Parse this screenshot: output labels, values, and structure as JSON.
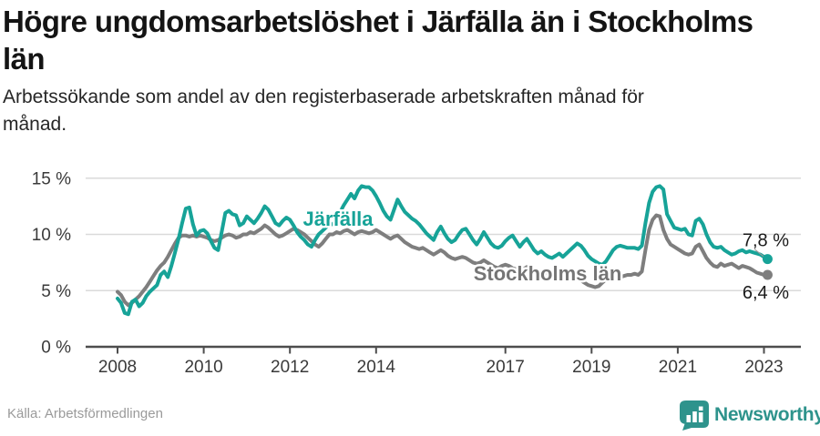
{
  "title": "Högre ungdomsarbetslöshet i Järfälla än i Stockholms län",
  "title_lines": [
    "Högre ungdomsarbetslöshet i Järfälla än i Stockholms",
    "län"
  ],
  "subtitle": "Arbetssökande som andel av den registerbaserade arbetskraften månad för månad.",
  "subtitle_lines": [
    "Arbetssökande som andel av den registerbaserade arbetskraften månad för",
    "månad."
  ],
  "source": "Källa: Arbetsförmedlingen",
  "branding": {
    "wordmark": "Newsworthy",
    "logo_icon": "bar-chart-bubble-icon",
    "color": "#2E938C"
  },
  "chart_data": {
    "type": "line",
    "frequency": "monthly",
    "x_start": "2008-01",
    "x_end": "2023-02",
    "x_ticks": [
      2008,
      2010,
      2012,
      2014,
      2017,
      2019,
      2021,
      2023
    ],
    "y_ticks_percent": [
      0,
      5,
      10,
      15
    ],
    "y_tick_labels": [
      "0 %",
      "5 %",
      "10 %",
      "15 %"
    ],
    "ylim": [
      0,
      16
    ],
    "grid": "horizontal",
    "colors": {
      "axis": "#4D4D4D",
      "gridline": "#DADADA",
      "tick_text": "#3A3A3A",
      "end_label_text": "#1A1A1A"
    },
    "series": [
      {
        "name": "Järfälla",
        "id": "jarfalla",
        "color": "#17A398",
        "end_label": "7,8 %",
        "end_value": 7.8,
        "values": [
          4.3,
          3.9,
          3.0,
          2.9,
          4.0,
          4.2,
          3.6,
          3.9,
          4.5,
          4.9,
          5.2,
          5.5,
          6.4,
          6.7,
          6.2,
          7.2,
          8.4,
          9.6,
          11.0,
          12.3,
          12.4,
          10.9,
          9.9,
          10.3,
          10.4,
          10.1,
          9.4,
          8.8,
          8.6,
          10.2,
          11.9,
          12.1,
          11.8,
          11.7,
          10.8,
          11.0,
          11.6,
          11.3,
          11.0,
          11.4,
          11.9,
          12.5,
          12.2,
          11.6,
          11.0,
          10.8,
          11.2,
          11.5,
          11.3,
          10.8,
          10.2,
          9.8,
          9.5,
          9.1,
          8.9,
          9.5,
          10.0,
          10.3,
          10.6,
          10.9,
          10.9,
          11.4,
          12.0,
          12.6,
          13.1,
          13.6,
          13.2,
          13.9,
          14.3,
          14.2,
          14.2,
          13.9,
          13.4,
          12.8,
          12.1,
          11.6,
          11.3,
          12.2,
          13.1,
          12.5,
          12.0,
          11.7,
          11.4,
          11.2,
          10.9,
          10.5,
          10.1,
          9.8,
          9.5,
          10.2,
          10.7,
          10.1,
          9.6,
          9.3,
          9.5,
          10.0,
          10.4,
          10.5,
          10.0,
          9.5,
          9.1,
          9.6,
          10.2,
          9.7,
          9.2,
          8.9,
          8.8,
          9.0,
          9.4,
          9.7,
          9.9,
          9.4,
          8.9,
          9.3,
          9.6,
          9.1,
          8.6,
          8.3,
          8.5,
          8.2,
          8.0,
          7.9,
          8.1,
          8.3,
          8.0,
          8.3,
          8.6,
          8.9,
          9.2,
          9.0,
          8.6,
          8.1,
          7.8,
          7.6,
          7.4,
          7.3,
          7.6,
          8.1,
          8.6,
          8.9,
          9.0,
          8.9,
          8.8,
          8.8,
          8.8,
          8.7,
          9.0,
          11.0,
          12.8,
          13.8,
          14.2,
          14.3,
          14.0,
          11.8,
          11.2,
          10.6,
          10.5,
          10.4,
          10.5,
          10.0,
          9.9,
          11.2,
          11.4,
          10.9,
          10.0,
          9.3,
          8.9,
          8.8,
          8.9,
          8.6,
          8.4,
          8.2,
          8.3,
          8.5,
          8.6,
          8.4,
          8.5,
          8.4,
          8.3,
          8.2,
          8.0,
          7.8
        ]
      },
      {
        "name": "Stockholms län",
        "id": "stockholms-lan",
        "color": "#7E7E7E",
        "label_color": "#757575",
        "end_label": "6,4 %",
        "end_value": 6.4,
        "values": [
          4.9,
          4.6,
          4.0,
          3.7,
          3.9,
          4.2,
          4.5,
          4.9,
          5.3,
          5.8,
          6.3,
          6.8,
          7.2,
          7.5,
          8.0,
          8.6,
          9.2,
          9.7,
          9.9,
          9.9,
          9.8,
          9.9,
          9.8,
          9.9,
          9.8,
          9.7,
          9.5,
          9.4,
          9.5,
          9.7,
          9.9,
          10.0,
          9.9,
          9.7,
          9.8,
          10.0,
          10.0,
          10.2,
          10.1,
          10.3,
          10.5,
          10.8,
          10.6,
          10.3,
          10.0,
          9.8,
          9.9,
          10.1,
          10.3,
          10.5,
          10.4,
          10.2,
          10.0,
          9.7,
          9.4,
          9.1,
          8.9,
          9.2,
          9.6,
          10.0,
          10.0,
          10.2,
          10.1,
          10.3,
          10.4,
          10.2,
          10.0,
          10.2,
          10.3,
          10.2,
          10.1,
          10.2,
          10.4,
          10.2,
          10.0,
          9.8,
          9.6,
          9.8,
          9.9,
          9.6,
          9.3,
          9.1,
          8.9,
          8.8,
          8.7,
          8.8,
          8.6,
          8.4,
          8.2,
          8.4,
          8.6,
          8.4,
          8.1,
          7.9,
          7.8,
          7.9,
          8.0,
          7.9,
          7.7,
          7.5,
          7.4,
          7.5,
          7.7,
          7.5,
          7.3,
          7.1,
          7.0,
          7.2,
          7.3,
          7.2,
          7.0,
          6.9,
          6.8,
          6.9,
          7.1,
          6.9,
          6.7,
          6.6,
          6.5,
          6.6,
          6.6,
          6.5,
          6.4,
          6.3,
          6.2,
          6.3,
          6.4,
          6.3,
          6.1,
          5.9,
          5.7,
          5.5,
          5.4,
          5.3,
          5.4,
          5.7,
          6.0,
          6.2,
          6.4,
          6.3,
          6.2,
          6.3,
          6.4,
          6.4,
          6.5,
          6.4,
          6.7,
          8.6,
          10.4,
          11.3,
          11.7,
          11.6,
          10.4,
          9.6,
          9.1,
          8.9,
          8.7,
          8.5,
          8.3,
          8.2,
          8.3,
          8.9,
          9.1,
          8.5,
          7.9,
          7.5,
          7.2,
          7.1,
          7.4,
          7.2,
          7.3,
          7.4,
          7.2,
          7.0,
          7.2,
          7.1,
          7.0,
          6.8,
          6.6,
          6.5,
          6.4,
          6.4
        ]
      }
    ]
  }
}
